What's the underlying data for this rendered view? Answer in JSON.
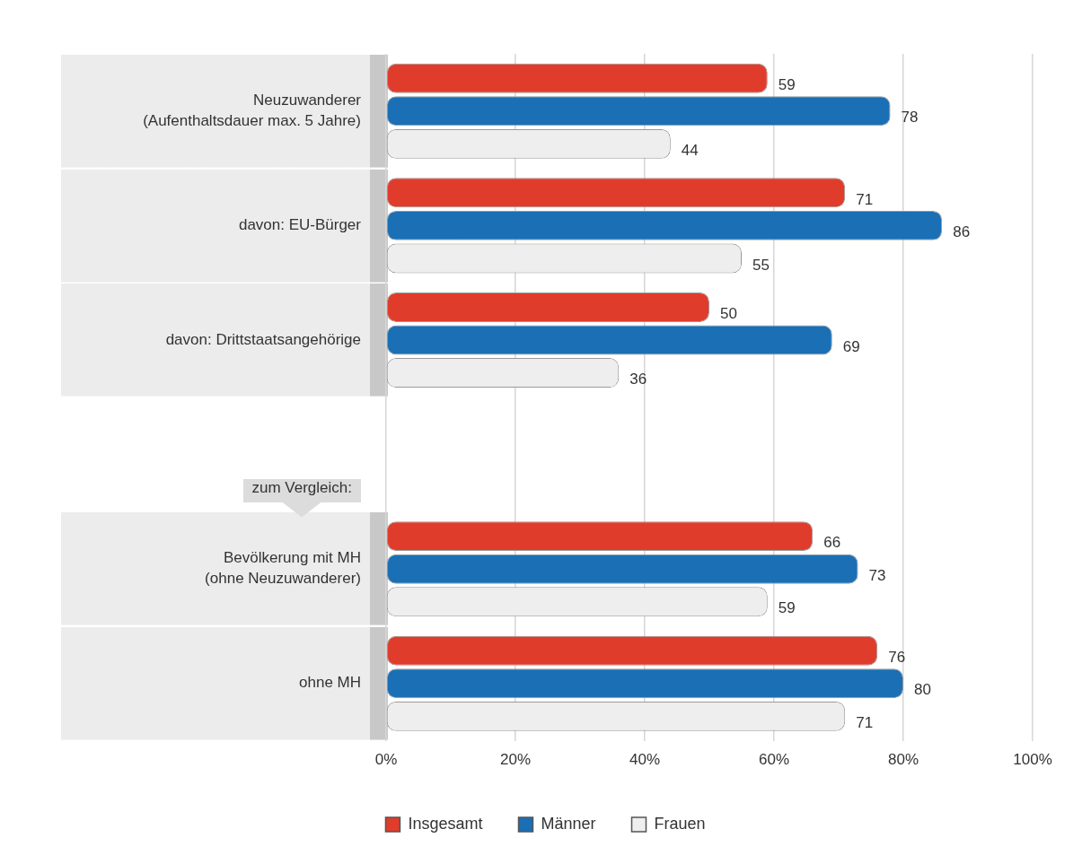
{
  "chart_data": {
    "type": "bar",
    "orientation": "horizontal",
    "categories": [
      "Neuzuwanderer\n(Aufenthaltsdauer max. 5 Jahre)",
      "davon: EU-Bürger",
      "davon: Drittstaatsangehörige",
      null,
      "Bevölkerung mit MH\n(ohne Neuzuwanderer)",
      "ohne MH"
    ],
    "series": [
      {
        "name": "Insgesamt",
        "color": "#e03c2c",
        "values": [
          59,
          71,
          50,
          null,
          66,
          76
        ]
      },
      {
        "name": "Männer",
        "color": "#1a6fb5",
        "values": [
          78,
          86,
          69,
          null,
          73,
          80
        ]
      },
      {
        "name": "Frauen",
        "color": "#eeeeee",
        "values": [
          44,
          55,
          36,
          null,
          59,
          71
        ]
      }
    ],
    "xlim": [
      0,
      100
    ],
    "xticks": [
      {
        "value": 0,
        "label": "0%"
      },
      {
        "value": 20,
        "label": "20%"
      },
      {
        "value": 40,
        "label": "40%"
      },
      {
        "value": 60,
        "label": "60%"
      },
      {
        "value": 80,
        "label": "80%"
      },
      {
        "value": 100,
        "label": "100%"
      }
    ],
    "grid": "x",
    "legend": "bottom",
    "data_labels": true,
    "annotations": [
      "zum Vergleich:"
    ]
  }
}
